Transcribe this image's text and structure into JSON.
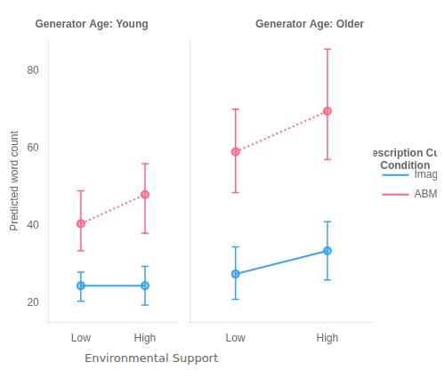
{
  "chart_data": [
    {
      "type": "line",
      "title": "Generator Age: Young",
      "categories": [
        "Low",
        "High"
      ],
      "x_label": "Environmental Support",
      "y_label": "Predicted word count",
      "ylim": [
        15,
        88
      ],
      "yticks": [
        20,
        40,
        60,
        80
      ],
      "grid": false,
      "series": [
        {
          "name": "Image",
          "line_style": "solid",
          "marker": "circle",
          "values": [
            24.5,
            24.5
          ],
          "ci_low": [
            20.5,
            19.5
          ],
          "ci_high": [
            28.0,
            29.5
          ]
        },
        {
          "name": "ABM",
          "line_style": "dotted",
          "marker": "circle",
          "values": [
            40.5,
            48.0
          ],
          "ci_low": [
            33.5,
            38.0
          ],
          "ci_high": [
            49.0,
            56.0
          ]
        }
      ]
    },
    {
      "type": "line",
      "title": "Generator Age: Older",
      "categories": [
        "Low",
        "High"
      ],
      "ylim": [
        15,
        88
      ],
      "yticks": [
        20,
        40,
        60,
        80
      ],
      "grid": false,
      "tick_labels": "x",
      "legend": "right",
      "legend_title": "Description Cue\nCondition",
      "series": [
        {
          "name": "Image",
          "line_style": "solid",
          "marker": "circle",
          "values": [
            27.5,
            33.5
          ],
          "ci_low": [
            21.0,
            26.0
          ],
          "ci_high": [
            34.5,
            41.0
          ]
        },
        {
          "name": "ABM",
          "line_style": "dotted",
          "marker": "circle",
          "values": [
            59.0,
            69.5
          ],
          "ci_low": [
            48.5,
            57.0
          ],
          "ci_high": [
            70.0,
            85.5
          ]
        }
      ]
    }
  ]
}
